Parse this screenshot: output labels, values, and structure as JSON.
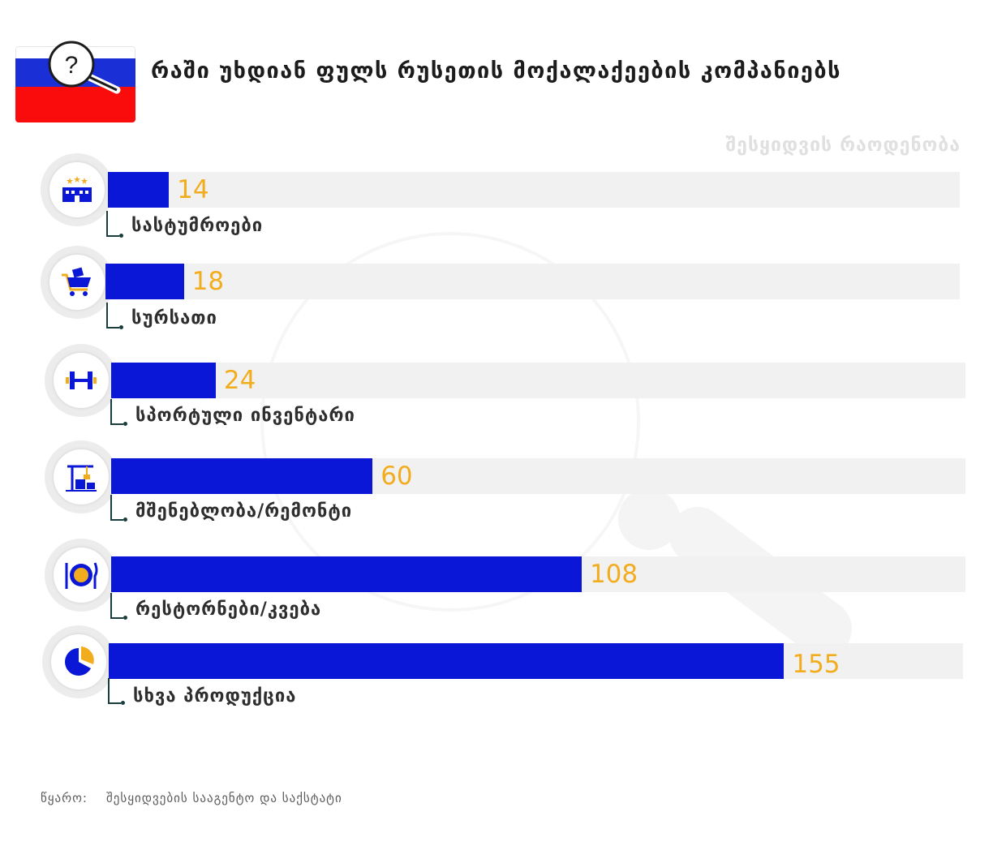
{
  "header": {
    "title": "რაში უხდიან ფულს რუსეთის მოქალაქეების კომპანიებს",
    "flag_colors": [
      "#ffffff",
      "#1a2fd6",
      "#fb0c0c"
    ],
    "flag_icon": "question-magnifier-icon"
  },
  "axis_caption": "შესყიდვის რაოდენობა",
  "chart_data": {
    "type": "bar",
    "orientation": "horizontal",
    "categories": [
      "სასტუმროები",
      "სურსათი",
      "სპორტული ინვენტარი",
      "მშენებლობა/რემონტი",
      "რესტორნები/კვება",
      "სხვა პროდუქცია"
    ],
    "values": [
      14,
      18,
      24,
      60,
      108,
      155
    ],
    "bar_color": "#0b17d6",
    "value_label_color": "#f2ad1e",
    "icons": [
      "hotel-icon",
      "shopping-cart-icon",
      "dumbbell-icon",
      "construction-crane-icon",
      "plate-cutlery-icon",
      "pie-chart-icon"
    ],
    "xlabel": "შესყიდვის რაოდენობა",
    "labels": [
      "14",
      "18",
      "24",
      "60",
      "108",
      "155"
    ]
  },
  "footer": {
    "source_label": "წყარო:",
    "source_text": "შესყიდვების სააგენტო და საქსტატი"
  }
}
